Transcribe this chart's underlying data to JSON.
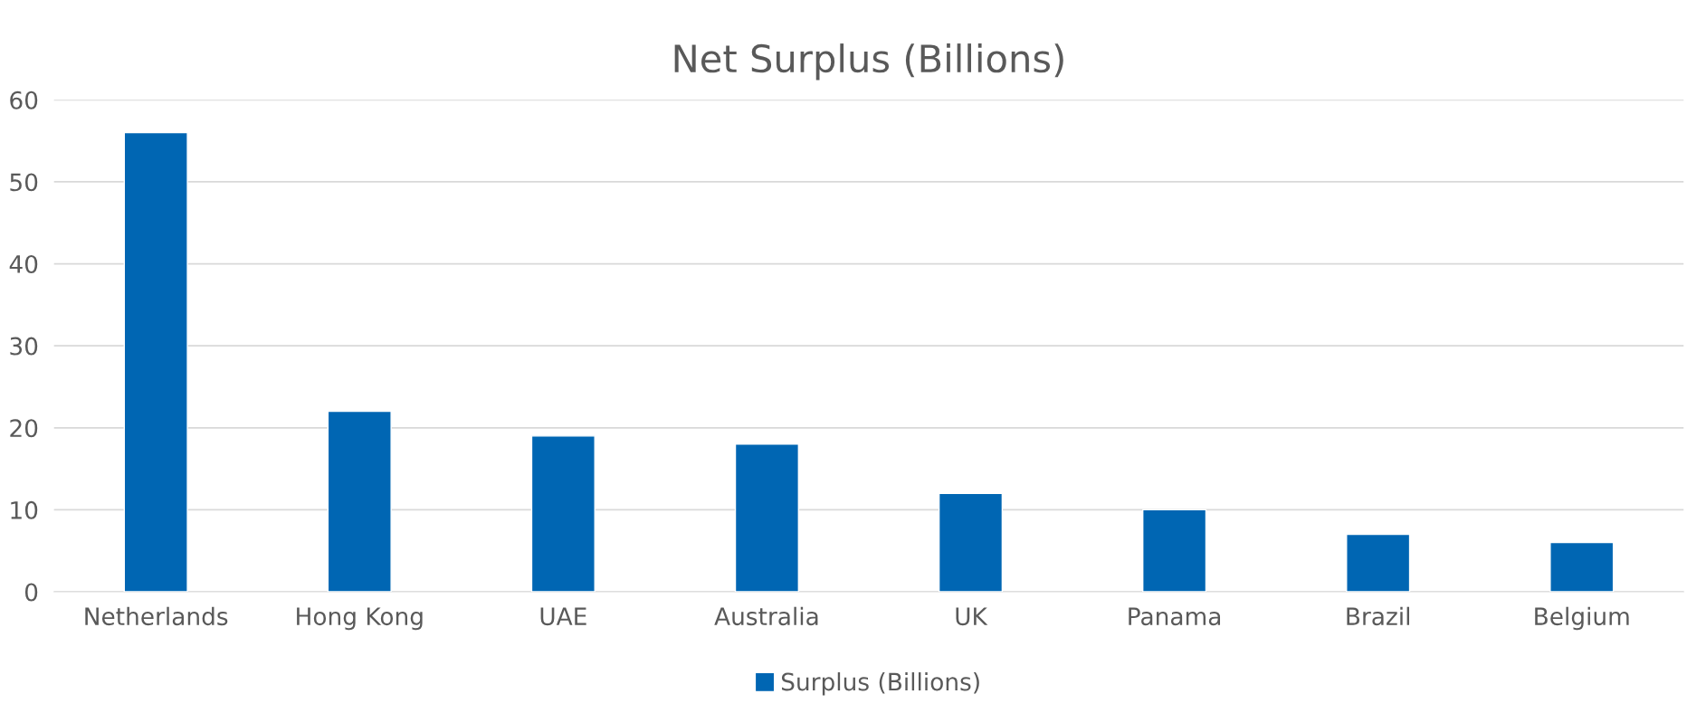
{
  "chart_data": {
    "type": "bar",
    "title": "Net Surplus (Billions)",
    "categories": [
      "Netherlands",
      "Hong Kong",
      "UAE",
      "Australia",
      "UK",
      "Panama",
      "Brazil",
      "Belgium"
    ],
    "series": [
      {
        "name": "Surplus (Billions)",
        "color": "#0066b3",
        "values": [
          56,
          22,
          19,
          18,
          12,
          10,
          7,
          6
        ]
      }
    ],
    "ylim": [
      0,
      60
    ],
    "yticks": [
      0,
      10,
      20,
      30,
      40,
      50,
      60
    ],
    "grid": "y",
    "legend": "bottom"
  }
}
